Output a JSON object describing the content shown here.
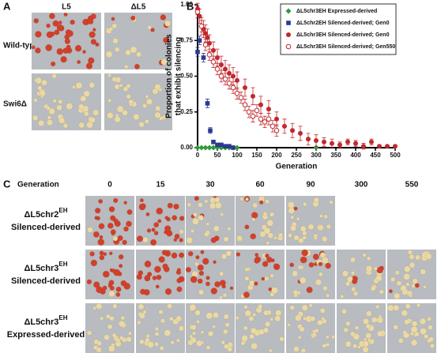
{
  "panel_a": {
    "label": "A",
    "columns": [
      "L5",
      "ΔL5"
    ],
    "rows": [
      "Wild-type",
      "Swi6Δ"
    ]
  },
  "chart_data": {
    "type": "scatter",
    "label": "B",
    "ylabel": [
      "Proportion of colonies",
      "that exhibit silencing"
    ],
    "xlabel": "Generation",
    "xlim": [
      0,
      500
    ],
    "xticks": [
      0,
      50,
      100,
      150,
      200,
      250,
      300,
      350,
      400,
      450,
      500
    ],
    "ylim": [
      0,
      1
    ],
    "yticks": [
      {
        "value": 0,
        "label": "0.00"
      },
      {
        "value": 0.25,
        "label": "0.25"
      },
      {
        "value": 0.5,
        "label": "0.50"
      },
      {
        "value": 0.75,
        "label": "0.75"
      },
      {
        "value": 1,
        "label": "1.00"
      }
    ],
    "legend": "upper right",
    "series": [
      {
        "name": "ΔL5chr3EH Expressed-derived",
        "color": "#2e9c3a",
        "marker": "diamond",
        "x": [
          0,
          10,
          20,
          30,
          40,
          50,
          60,
          70,
          80,
          90,
          100,
          300
        ],
        "values": [
          0,
          0,
          0,
          0,
          0,
          0,
          0,
          0,
          0,
          0,
          0,
          0
        ]
      },
      {
        "name": "ΔL5chr2EH Silenced-derived; Gen0",
        "color": "#2b3a8f",
        "marker": "square",
        "x": [
          0,
          5,
          15,
          25,
          32,
          40,
          50,
          60,
          70,
          80,
          90
        ],
        "values": [
          0.67,
          0.75,
          0.63,
          0.31,
          0.12,
          0.04,
          0.02,
          0.02,
          0.01,
          0.01,
          0
        ],
        "errors": [
          0.03,
          0.03,
          0.03,
          0.03,
          0.02,
          0.01,
          0.01,
          0.01,
          0.01,
          0.01,
          0.01
        ]
      },
      {
        "name": "ΔL5chr3EH Silenced-derived; Gen0",
        "color": "#c0282d",
        "marker": "circle",
        "x": [
          0,
          5,
          10,
          15,
          20,
          25,
          30,
          40,
          50,
          60,
          70,
          80,
          90,
          100,
          120,
          140,
          160,
          180,
          200,
          220,
          240,
          260,
          280,
          300,
          320,
          340,
          360,
          380,
          400,
          420,
          440,
          460,
          480,
          500
        ],
        "values": [
          0.97,
          0.92,
          0.85,
          0.83,
          0.8,
          0.77,
          0.73,
          0.68,
          0.63,
          0.58,
          0.55,
          0.52,
          0.5,
          0.47,
          0.42,
          0.36,
          0.3,
          0.27,
          0.2,
          0.15,
          0.12,
          0.1,
          0.06,
          0.05,
          0.04,
          0.03,
          0.02,
          0.04,
          0.03,
          0.01,
          0.04,
          0.01,
          0.01,
          0.01
        ],
        "errors": [
          0.04,
          0.05,
          0.06,
          0.06,
          0.06,
          0.06,
          0.06,
          0.06,
          0.06,
          0.06,
          0.06,
          0.06,
          0.06,
          0.06,
          0.06,
          0.06,
          0.06,
          0.06,
          0.05,
          0.05,
          0.05,
          0.05,
          0.04,
          0.04,
          0.03,
          0.03,
          0.02,
          0.02,
          0.02,
          0.02,
          0.02,
          0.01,
          0.01,
          0.01
        ]
      },
      {
        "name": "ΔL5chr3EH Silenced-derived; Gen550",
        "color": "#c0282d",
        "marker": "open-circle",
        "x": [
          0,
          10,
          20,
          30,
          40,
          50,
          60,
          70,
          80,
          90,
          100,
          110,
          120,
          130,
          140,
          150,
          160,
          170,
          180,
          190,
          200
        ],
        "values": [
          0.95,
          0.85,
          0.72,
          0.65,
          0.6,
          0.55,
          0.5,
          0.48,
          0.45,
          0.42,
          0.38,
          0.35,
          0.3,
          0.25,
          0.22,
          0.26,
          0.2,
          0.18,
          0.2,
          0.15,
          0.12
        ],
        "errors": [
          0.04,
          0.04,
          0.04,
          0.04,
          0.04,
          0.04,
          0.04,
          0.04,
          0.04,
          0.04,
          0.04,
          0.04,
          0.04,
          0.04,
          0.04,
          0.04,
          0.04,
          0.04,
          0.04,
          0.04,
          0.04
        ]
      }
    ]
  },
  "panel_c": {
    "label": "C",
    "header": "Generation",
    "generations": [
      0,
      15,
      30,
      60,
      90,
      300,
      550
    ],
    "rows": [
      {
        "strain": "ΔL5chr2",
        "superscript": "EH",
        "description": "Silenced-derived"
      },
      {
        "strain": "ΔL5chr3",
        "superscript": "EH",
        "description": "Silenced-derived"
      },
      {
        "strain": "ΔL5chr3",
        "superscript": "EH",
        "description": "Expressed-derived"
      }
    ]
  }
}
